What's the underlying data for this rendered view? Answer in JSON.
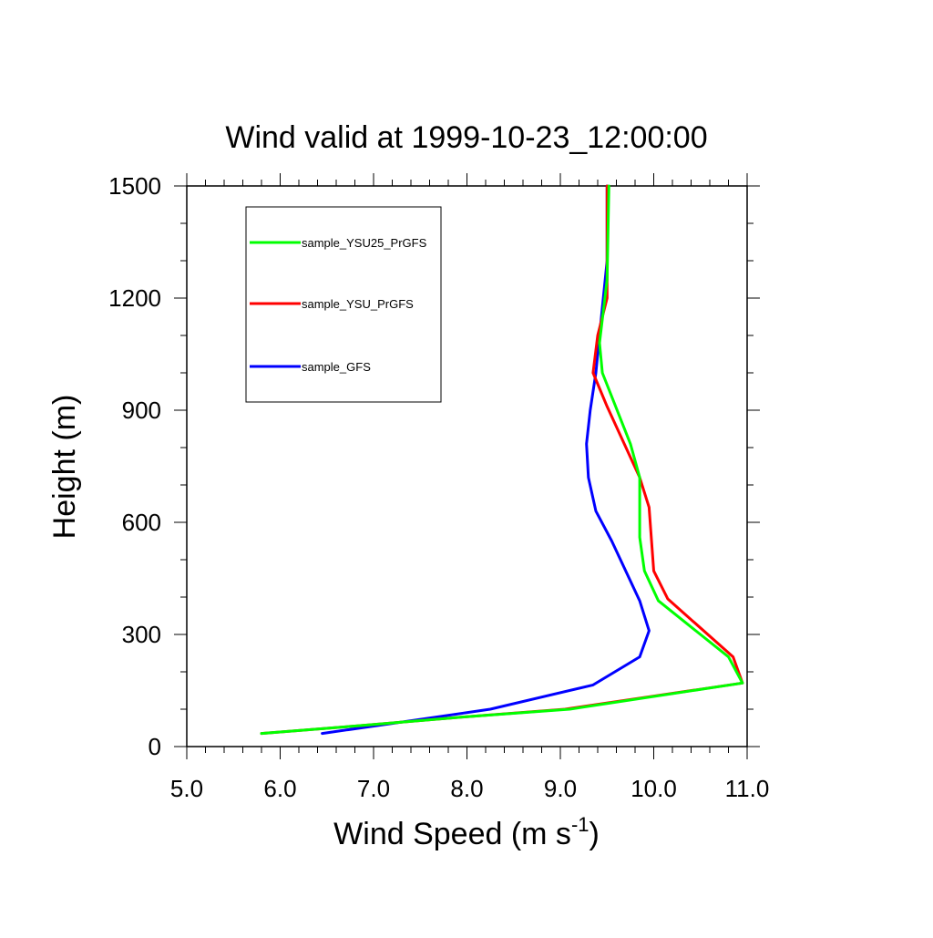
{
  "chart_data": {
    "type": "line",
    "title": "Wind valid at 1999-10-23_12:00:00",
    "xlabel": "Wind Speed (m s",
    "xlabel_superscript": "-1",
    "xlabel_suffix": ")",
    "ylabel": "Height (m)",
    "xlim": [
      5.0,
      11.0
    ],
    "ylim": [
      0,
      1500
    ],
    "x_ticks": [
      "5.0",
      "6.0",
      "7.0",
      "8.0",
      "9.0",
      "10.0",
      "11.0"
    ],
    "y_ticks": [
      "0",
      "300",
      "600",
      "900",
      "1200",
      "1500"
    ],
    "grid": false,
    "legend_position": "top-left",
    "series": [
      {
        "name": "sample_YSU25_PrGFS",
        "color": "#00ff00",
        "points": [
          [
            5.8,
            35
          ],
          [
            6.8,
            55
          ],
          [
            8.0,
            80
          ],
          [
            9.1,
            100
          ],
          [
            10.95,
            170
          ],
          [
            10.8,
            240
          ],
          [
            10.05,
            390
          ],
          [
            9.9,
            470
          ],
          [
            9.85,
            560
          ],
          [
            9.85,
            720
          ],
          [
            9.75,
            810
          ],
          [
            9.45,
            1000
          ],
          [
            9.42,
            1080
          ],
          [
            9.5,
            1250
          ],
          [
            9.52,
            1500
          ]
        ]
      },
      {
        "name": "sample_YSU_PrGFS",
        "color": "#ff0000",
        "points": [
          [
            5.8,
            35
          ],
          [
            6.8,
            55
          ],
          [
            8.0,
            80
          ],
          [
            9.05,
            100
          ],
          [
            10.95,
            170
          ],
          [
            10.85,
            240
          ],
          [
            10.15,
            395
          ],
          [
            10.0,
            470
          ],
          [
            9.95,
            640
          ],
          [
            9.85,
            720
          ],
          [
            9.5,
            910
          ],
          [
            9.35,
            1000
          ],
          [
            9.4,
            1100
          ],
          [
            9.5,
            1200
          ],
          [
            9.5,
            1500
          ]
        ]
      },
      {
        "name": "sample_GFS",
        "color": "#0000ff",
        "points": [
          [
            6.45,
            35
          ],
          [
            7.2,
            62
          ],
          [
            8.25,
            100
          ],
          [
            9.35,
            165
          ],
          [
            9.85,
            240
          ],
          [
            9.95,
            310
          ],
          [
            9.85,
            390
          ],
          [
            9.55,
            550
          ],
          [
            9.38,
            630
          ],
          [
            9.3,
            720
          ],
          [
            9.28,
            810
          ],
          [
            9.32,
            900
          ],
          [
            9.38,
            1000
          ],
          [
            9.42,
            1100
          ],
          [
            9.5,
            1300
          ],
          [
            9.5,
            1500
          ]
        ]
      }
    ]
  }
}
